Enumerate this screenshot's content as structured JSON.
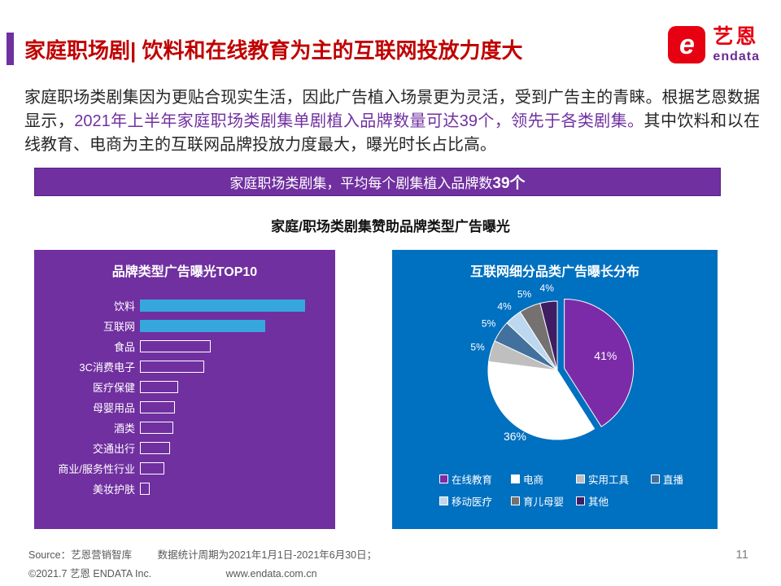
{
  "header": {
    "title": "家庭职场剧| 饮料和在线教育为主的互联网投放力度大",
    "logo": {
      "mark": "e",
      "brand_cn": "艺恩",
      "brand_en": "endata",
      "red": "#E60012",
      "purple": "#6B2C91"
    }
  },
  "intro": {
    "part1": "家庭职场类剧集因为更贴合现实生活，因此广告植入场景更为灵活，受到广告主的青睐。根据艺恩数据显示，",
    "emphasis": "2021年上半年家庭职场类剧集单剧植入品牌数量可达39个，领先于各类剧集。",
    "part2": "其中饮料和以在线教育、电商为主的互联网品牌投放力度最大，曝光时长占比高。"
  },
  "banner": {
    "text": "家庭职场类剧集，平均每个剧集植入品牌数",
    "highlight": "39个",
    "bg": "#7030A0"
  },
  "section_title": "家庭/职场类剧集赞助品牌类型广告曝光",
  "chart_data": [
    {
      "type": "bar",
      "title": "品牌类型广告曝光TOP10",
      "orientation": "horizontal",
      "categories": [
        "饮料",
        "互联网",
        "食品",
        "3C消费电子",
        "医疗保健",
        "母婴用品",
        "酒类",
        "交通出行",
        "商业/服务性行业",
        "美妆护肤"
      ],
      "values": [
        100,
        76,
        43,
        39,
        23,
        21,
        20,
        18,
        15,
        6
      ],
      "values_note": "bars carry no numeric labels; values estimated relative to longest bar = 100",
      "bar_fill_color": "#35A7DC",
      "bar_style_rule": "top two bars solid fill, remaining bars white outline only",
      "panel_bg": "#7030A0",
      "grid": false
    },
    {
      "type": "pie",
      "title": "互联网细分品类广告曝长分布",
      "slices": [
        {
          "label": "在线教育",
          "value": 41,
          "color": "#7C2BA8",
          "exploded": true
        },
        {
          "label": "电商",
          "value": 36,
          "color": "#FFFFFF"
        },
        {
          "label": "实用工具",
          "value": 5,
          "color": "#BFBFBF"
        },
        {
          "label": "直播",
          "value": 5,
          "color": "#41719C"
        },
        {
          "label": "移动医疗",
          "value": 4,
          "color": "#BDD7EE"
        },
        {
          "label": "育儿母婴",
          "value": 5,
          "color": "#767171"
        },
        {
          "label": "其他",
          "value": 4,
          "color": "#3F1D63"
        }
      ],
      "legend_position": "bottom",
      "panel_bg": "#0070C0",
      "labels": "percent shown in white on/near each slice"
    }
  ],
  "footer": {
    "source": "Source：艺恩营销智库",
    "period": "数据统计周期为2021年1月1日-2021年6月30日；",
    "copyright": "©2021.7 艺恩 ENDATA Inc.",
    "website": "www.endata.com.cn",
    "page_number": "11"
  }
}
